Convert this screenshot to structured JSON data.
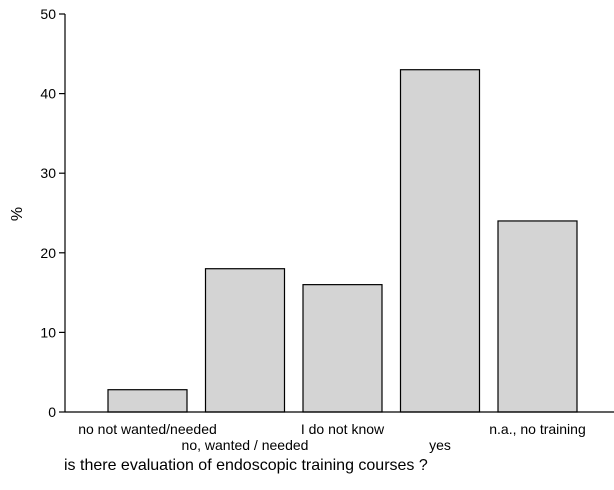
{
  "chart_data": {
    "type": "bar",
    "categories": [
      "no not wanted/needed",
      "no, wanted / needed",
      "I do not know",
      "yes",
      "n.a., no training"
    ],
    "values": [
      2.8,
      18,
      16,
      43,
      24
    ],
    "xlabel": "is there evaluation of endoscopic training courses ?",
    "ylabel": "%",
    "ylim": [
      0,
      50
    ],
    "yticks": [
      0,
      10,
      20,
      30,
      40,
      50
    ],
    "grid": false,
    "colors": {
      "bar_fill": "#d4d4d4",
      "bar_stroke": "#000000",
      "axis": "#000000"
    }
  }
}
